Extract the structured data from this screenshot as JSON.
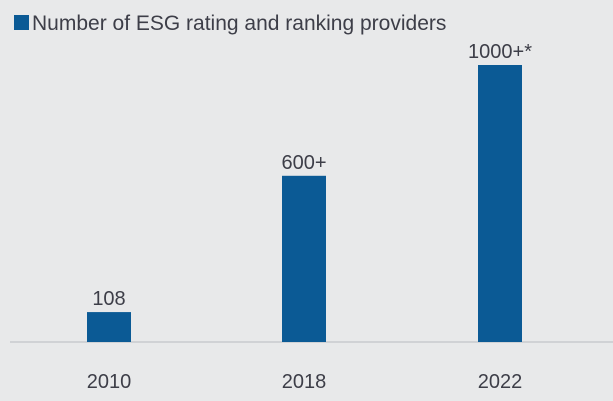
{
  "chart_data": {
    "type": "bar",
    "categories": [
      "2010",
      "2018",
      "2022"
    ],
    "series": [
      {
        "name": "Number of ESG rating and ranking providers",
        "values": [
          108,
          600,
          1000
        ],
        "data_labels": [
          "108",
          "600+",
          "1000+*"
        ]
      }
    ],
    "title": "",
    "xlabel": "",
    "ylabel": "",
    "ylim": [
      0,
      1000
    ],
    "grid": false,
    "legend_position": "top-left",
    "colors": {
      "bar": "#0b5a95",
      "background": "#e8e9ea",
      "text": "#3d3e48",
      "axis": "#b9bcc0"
    }
  }
}
